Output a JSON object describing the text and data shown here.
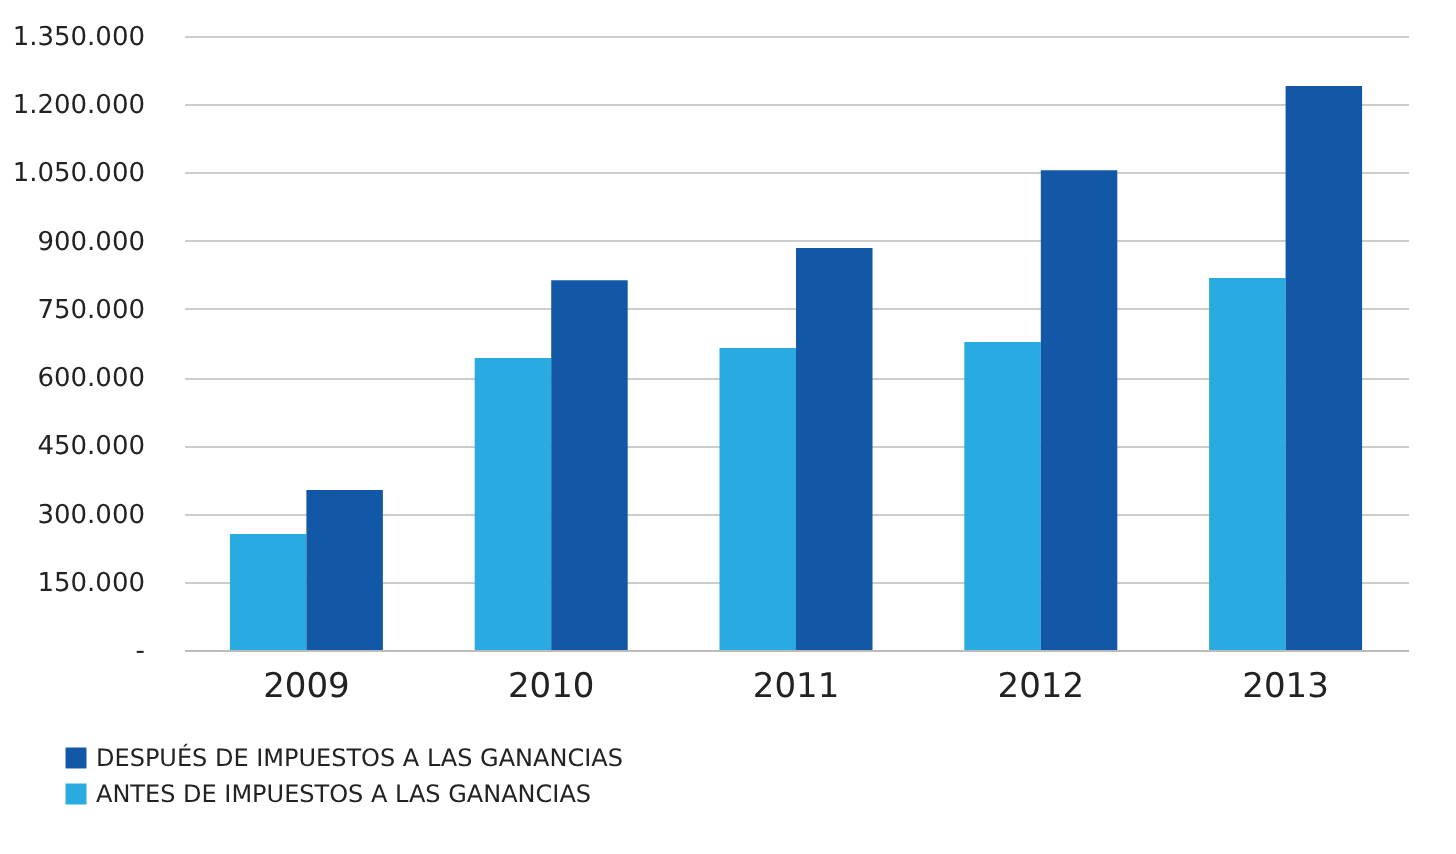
{
  "chart_data": {
    "type": "bar",
    "categories": [
      "2009",
      "2010",
      "2011",
      "2012",
      "2013"
    ],
    "series": [
      {
        "name": "ANTES DE IMPUESTOS A LAS GANANCIAS",
        "color": "#29abe2",
        "values": [
          255000,
          642000,
          664000,
          677000,
          818000
        ]
      },
      {
        "name": "DESPUÉS DE IMPUESTOS A LAS GANANCIAS",
        "color": "#1358a7",
        "values": [
          352000,
          813000,
          884000,
          1055000,
          1240000
        ]
      }
    ],
    "ylim": [
      0,
      1350000
    ],
    "yticks": [
      {
        "value": 0,
        "label": "-"
      },
      {
        "value": 150000,
        "label": "150.000"
      },
      {
        "value": 300000,
        "label": "300.000"
      },
      {
        "value": 450000,
        "label": "450.000"
      },
      {
        "value": 600000,
        "label": "600.000"
      },
      {
        "value": 750000,
        "label": "750.000"
      },
      {
        "value": 900000,
        "label": "900.000"
      },
      {
        "value": 1050000,
        "label": "1.050.000"
      },
      {
        "value": 1200000,
        "label": "1.200.000"
      },
      {
        "value": 1350000,
        "label": "1.350.000"
      }
    ],
    "grid": "y",
    "legend": "bottom left"
  }
}
